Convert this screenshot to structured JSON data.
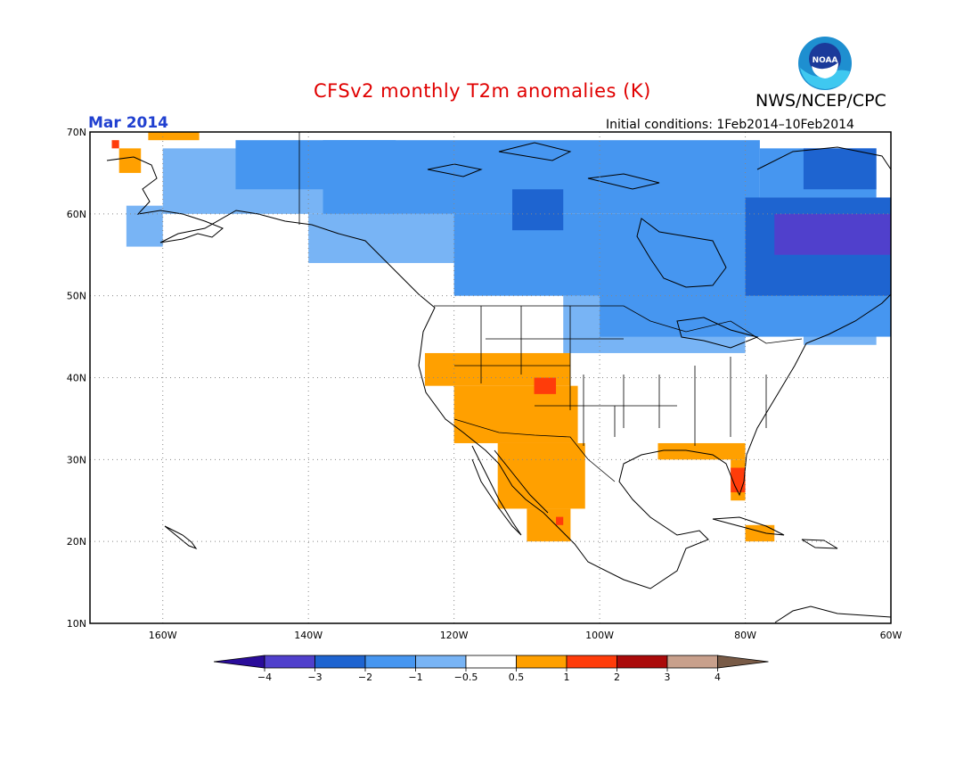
{
  "header": {
    "title": "CFSv2 monthly T2m anomalies (K)",
    "month": "Mar 2014",
    "initial_conditions": "Initial conditions: 1Feb2014–10Feb2014",
    "agency": "NWS/NCEP/CPC",
    "logo_text": "NOAA"
  },
  "axes": {
    "lat_labels": [
      "70N",
      "60N",
      "50N",
      "40N",
      "30N",
      "20N",
      "10N"
    ],
    "lon_labels": [
      "160W",
      "140W",
      "120W",
      "100W",
      "80W",
      "60W"
    ]
  },
  "colorbar": {
    "labels": [
      "−4",
      "−3",
      "−2",
      "−1",
      "−0.5",
      "0.5",
      "1",
      "2",
      "3",
      "4"
    ],
    "colors": {
      "lt_-4": "#2a0c9a",
      "-4_-3": "#5040cc",
      "-3_-2": "#1e64d0",
      "-2_-1": "#4696f0",
      "-1_-0.5": "#78b4f5",
      "-0.5_0.5": "#ffffff",
      "0.5_1": "#ffa000",
      "1_2": "#ff3c0a",
      "2_3": "#aa0a0a",
      "3_4": "#c8a08c",
      "gt_4": "#785a46"
    }
  },
  "map": {
    "extent_lon": [
      -170,
      -60
    ],
    "extent_lat": [
      10,
      70
    ],
    "grid_lines": true,
    "anomaly_regions": [
      {
        "level": "-1_-0.5",
        "lon": [
          -165,
          -160
        ],
        "lat": [
          56,
          61
        ]
      },
      {
        "level": "-1_-0.5",
        "lon": [
          -160,
          -128
        ],
        "lat": [
          60,
          68
        ]
      },
      {
        "level": "-1_-0.5",
        "lon": [
          -140,
          -110
        ],
        "lat": [
          54,
          60
        ]
      },
      {
        "level": "-1_-0.5",
        "lon": [
          -105,
          -80
        ],
        "lat": [
          43,
          50
        ]
      },
      {
        "level": "-1_-0.5",
        "lon": [
          -72,
          -62
        ],
        "lat": [
          44,
          48
        ]
      },
      {
        "level": "-2_-1",
        "lon": [
          -150,
          -128
        ],
        "lat": [
          63,
          69
        ]
      },
      {
        "level": "-2_-1",
        "lon": [
          -138,
          -78
        ],
        "lat": [
          60,
          69
        ]
      },
      {
        "level": "-2_-1",
        "lon": [
          -120,
          -75
        ],
        "lat": [
          50,
          60
        ]
      },
      {
        "level": "-2_-1",
        "lon": [
          -100,
          -60
        ],
        "lat": [
          45,
          52
        ]
      },
      {
        "level": "-2_-1",
        "lon": [
          -83,
          -60
        ],
        "lat": [
          52,
          57
        ]
      },
      {
        "level": "-2_-1",
        "lon": [
          -78,
          -62
        ],
        "lat": [
          62,
          68
        ]
      },
      {
        "level": "-3_-2",
        "lon": [
          -112,
          -105
        ],
        "lat": [
          58,
          63
        ]
      },
      {
        "level": "-3_-2",
        "lon": [
          -80,
          -60
        ],
        "lat": [
          50,
          62
        ]
      },
      {
        "level": "-3_-2",
        "lon": [
          -72,
          -62
        ],
        "lat": [
          63,
          68
        ]
      },
      {
        "level": "-4_-3",
        "lon": [
          -76,
          -60
        ],
        "lat": [
          55,
          60
        ]
      },
      {
        "level": "0.5_1",
        "lon": [
          -166,
          -163
        ],
        "lat": [
          65,
          68
        ]
      },
      {
        "level": "0.5_1",
        "lon": [
          -162,
          -155
        ],
        "lat": [
          69,
          70
        ]
      },
      {
        "level": "0.5_1",
        "lon": [
          -124,
          -104
        ],
        "lat": [
          39,
          43
        ]
      },
      {
        "level": "0.5_1",
        "lon": [
          -120,
          -103
        ],
        "lat": [
          32,
          39
        ]
      },
      {
        "level": "0.5_1",
        "lon": [
          -114,
          -102
        ],
        "lat": [
          24,
          32
        ]
      },
      {
        "level": "0.5_1",
        "lon": [
          -110,
          -104
        ],
        "lat": [
          20,
          24
        ]
      },
      {
        "level": "0.5_1",
        "lon": [
          -92,
          -80
        ],
        "lat": [
          30,
          32
        ]
      },
      {
        "level": "0.5_1",
        "lon": [
          -82,
          -80
        ],
        "lat": [
          25,
          30
        ]
      },
      {
        "level": "0.5_1",
        "lon": [
          -80,
          -76
        ],
        "lat": [
          20,
          22
        ]
      },
      {
        "level": "1_2",
        "lon": [
          -167,
          -166
        ],
        "lat": [
          68,
          69
        ]
      },
      {
        "level": "1_2",
        "lon": [
          -109,
          -106
        ],
        "lat": [
          38,
          40
        ]
      },
      {
        "level": "1_2",
        "lon": [
          -82,
          -80
        ],
        "lat": [
          26,
          29
        ]
      },
      {
        "level": "1_2",
        "lon": [
          -106,
          -105
        ],
        "lat": [
          22,
          23
        ]
      }
    ]
  }
}
